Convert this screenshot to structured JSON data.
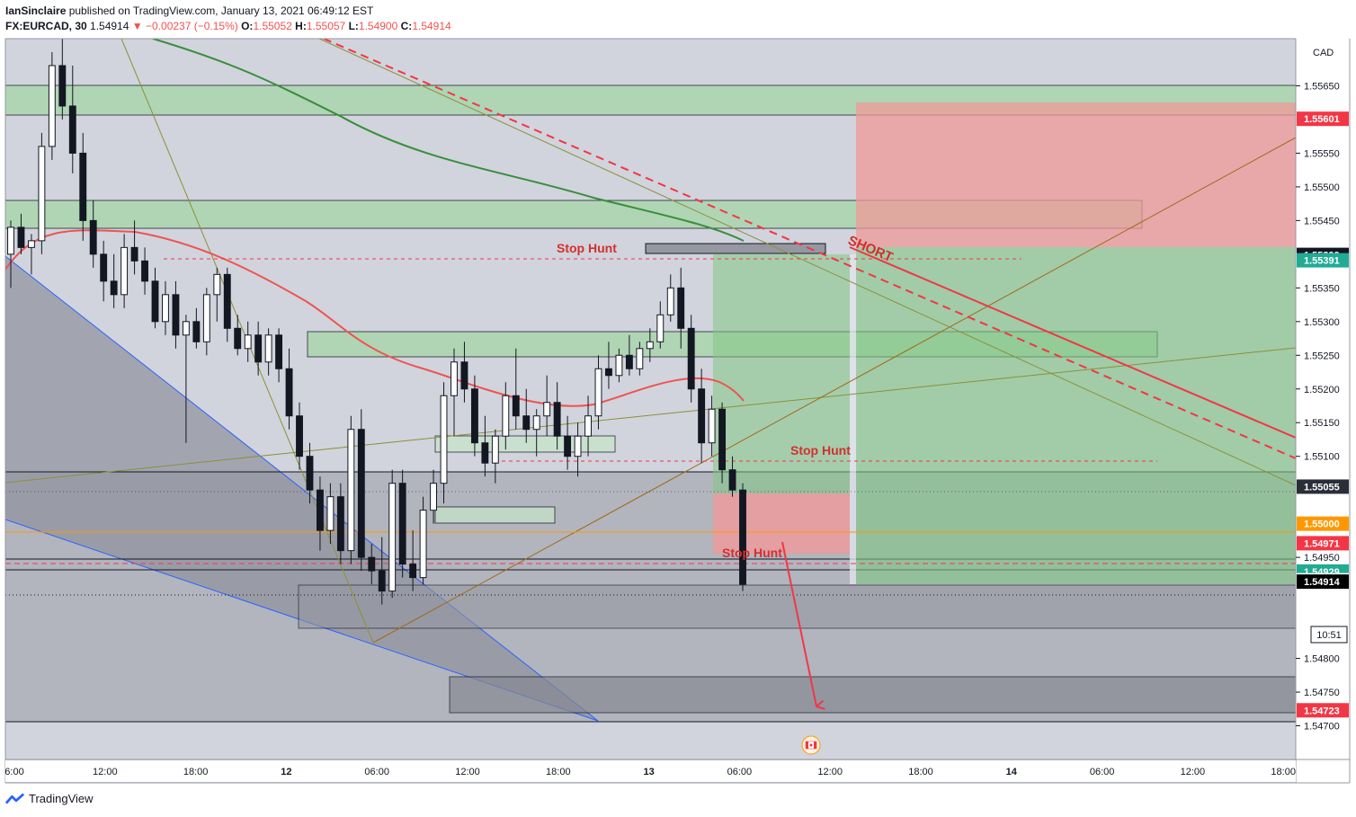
{
  "header": {
    "publisher": "IanSinclaire",
    "published_text": " published on TradingView.com, January 13, 2021 06:49:12 EST",
    "symbol": "FX:EURCAD, 30",
    "last": "1.54914",
    "change": "−0.00237 (−0.15%)",
    "o_label": "O:",
    "o": "1.55052",
    "h_label": "H:",
    "h": "1.55057",
    "l_label": "L:",
    "l": "1.54900",
    "c_label": "C:",
    "c": "1.54914"
  },
  "footer": {
    "brand": "TradingView"
  },
  "chart_data": {
    "type": "candlestick",
    "currency": "CAD",
    "y_ticks": [
      "1.55650",
      "1.55550",
      "1.55500",
      "1.55450",
      "1.55350",
      "1.55300",
      "1.55250",
      "1.55200",
      "1.55150",
      "1.55100",
      "1.54950",
      "1.54800",
      "1.54750",
      "1.54700"
    ],
    "y_ticks_values": [
      1.5565,
      1.5555,
      1.555,
      1.5545,
      1.5535,
      1.553,
      1.5525,
      1.552,
      1.5515,
      1.551,
      1.5495,
      1.548,
      1.5475,
      1.547
    ],
    "ylim": [
      1.5465,
      1.5572
    ],
    "x_ticks": [
      "6:00",
      "12:00",
      "18:00",
      "12",
      "06:00",
      "12:00",
      "18:00",
      "13",
      "06:00",
      "12:00",
      "18:00",
      "14",
      "06:00",
      "12:00",
      "18:00"
    ],
    "price_labels": [
      {
        "text": "1.55601",
        "value": 1.55601,
        "color": "#f23645"
      },
      {
        "text": "1.55399",
        "value": 1.55399,
        "color": "#131722"
      },
      {
        "text": "1.55391",
        "value": 1.55391,
        "color": "#22ab94"
      },
      {
        "text": "1.55055",
        "value": 1.55055,
        "color": "#2a2e39"
      },
      {
        "text": "1.55000",
        "value": 1.55,
        "color": "#ff9800"
      },
      {
        "text": "1.54971",
        "value": 1.54971,
        "color": "#f23645"
      },
      {
        "text": "1.54929",
        "value": 1.54929,
        "color": "#22ab94"
      },
      {
        "text": "1.54916",
        "value": 1.54916,
        "color": "#ffffff"
      },
      {
        "text": "1.54914",
        "value": 1.54914,
        "color": "#000000"
      },
      {
        "text": "1.54723",
        "value": 1.54723,
        "color": "#f23645"
      }
    ],
    "countdown": "10:51",
    "annotations": [
      "Stop Hunt",
      "Stop Hunt",
      "Stop Hunt",
      "SHORT"
    ],
    "candles": [
      [
        1.554,
        1.5545,
        1.5535,
        1.5544
      ],
      [
        1.5544,
        1.5546,
        1.554,
        1.5541
      ],
      [
        1.5541,
        1.5543,
        1.5537,
        1.5542
      ],
      [
        1.5542,
        1.5558,
        1.554,
        1.5556
      ],
      [
        1.5556,
        1.557,
        1.5554,
        1.5568
      ],
      [
        1.5568,
        1.5575,
        1.556,
        1.5562
      ],
      [
        1.5562,
        1.5568,
        1.5552,
        1.5555
      ],
      [
        1.5555,
        1.5558,
        1.5542,
        1.5545
      ],
      [
        1.5545,
        1.5548,
        1.5538,
        1.554
      ],
      [
        1.554,
        1.5542,
        1.5533,
        1.5536
      ],
      [
        1.5536,
        1.554,
        1.5532,
        1.5534
      ],
      [
        1.5534,
        1.5543,
        1.5532,
        1.5541
      ],
      [
        1.5541,
        1.5545,
        1.5537,
        1.5539
      ],
      [
        1.5539,
        1.5541,
        1.5534,
        1.5536
      ],
      [
        1.5536,
        1.5538,
        1.5529,
        1.553
      ],
      [
        1.553,
        1.5536,
        1.5528,
        1.5534
      ],
      [
        1.5534,
        1.5536,
        1.5526,
        1.5528
      ],
      [
        1.5528,
        1.5531,
        1.5512,
        1.553
      ],
      [
        1.553,
        1.5532,
        1.5526,
        1.5527
      ],
      [
        1.5527,
        1.5535,
        1.5525,
        1.5534
      ],
      [
        1.5534,
        1.5538,
        1.553,
        1.5537
      ],
      [
        1.5537,
        1.5538,
        1.5527,
        1.5529
      ],
      [
        1.5529,
        1.5531,
        1.5525,
        1.5526
      ],
      [
        1.5526,
        1.553,
        1.5524,
        1.5528
      ],
      [
        1.5528,
        1.553,
        1.5522,
        1.5524
      ],
      [
        1.5524,
        1.5529,
        1.5522,
        1.5528
      ],
      [
        1.5528,
        1.5529,
        1.5521,
        1.5523
      ],
      [
        1.5523,
        1.5526,
        1.5514,
        1.5516
      ],
      [
        1.5516,
        1.5518,
        1.5508,
        1.551
      ],
      [
        1.551,
        1.5512,
        1.5503,
        1.5505
      ],
      [
        1.5505,
        1.5507,
        1.5496,
        1.5499
      ],
      [
        1.5499,
        1.5506,
        1.5497,
        1.5504
      ],
      [
        1.5504,
        1.5506,
        1.5494,
        1.5496
      ],
      [
        1.5496,
        1.5516,
        1.5494,
        1.5514
      ],
      [
        1.5514,
        1.5517,
        1.5493,
        1.5495
      ],
      [
        1.5495,
        1.5497,
        1.5491,
        1.5493
      ],
      [
        1.5493,
        1.5498,
        1.5488,
        1.549
      ],
      [
        1.549,
        1.5508,
        1.5489,
        1.5506
      ],
      [
        1.5506,
        1.5508,
        1.5492,
        1.5494
      ],
      [
        1.5494,
        1.5499,
        1.549,
        1.5492
      ],
      [
        1.5492,
        1.5504,
        1.5491,
        1.5502
      ],
      [
        1.5502,
        1.5508,
        1.55,
        1.5506
      ],
      [
        1.5506,
        1.5521,
        1.5503,
        1.5519
      ],
      [
        1.5519,
        1.5526,
        1.5513,
        1.5524
      ],
      [
        1.5524,
        1.5527,
        1.5518,
        1.552
      ],
      [
        1.552,
        1.5522,
        1.551,
        1.5512
      ],
      [
        1.5512,
        1.5516,
        1.5507,
        1.5509
      ],
      [
        1.5509,
        1.5514,
        1.5506,
        1.5513
      ],
      [
        1.5513,
        1.5521,
        1.5511,
        1.5519
      ],
      [
        1.5519,
        1.5526,
        1.5514,
        1.5516
      ],
      [
        1.5516,
        1.552,
        1.5512,
        1.5514
      ],
      [
        1.5514,
        1.5517,
        1.551,
        1.5516
      ],
      [
        1.5516,
        1.5522,
        1.5513,
        1.5518
      ],
      [
        1.5518,
        1.5521,
        1.5511,
        1.5513
      ],
      [
        1.5513,
        1.5516,
        1.5508,
        1.551
      ],
      [
        1.551,
        1.5515,
        1.5507,
        1.5513
      ],
      [
        1.5513,
        1.5519,
        1.551,
        1.5516
      ],
      [
        1.5516,
        1.5525,
        1.5514,
        1.5523
      ],
      [
        1.5523,
        1.5527,
        1.552,
        1.5522
      ],
      [
        1.5522,
        1.5526,
        1.5521,
        1.5525
      ],
      [
        1.5525,
        1.5528,
        1.5522,
        1.5523
      ],
      [
        1.5523,
        1.5527,
        1.5522,
        1.5526
      ],
      [
        1.5526,
        1.5529,
        1.5524,
        1.5527
      ],
      [
        1.5527,
        1.5533,
        1.5526,
        1.5531
      ],
      [
        1.5531,
        1.5537,
        1.553,
        1.5535
      ],
      [
        1.5535,
        1.5538,
        1.5526,
        1.5529
      ],
      [
        1.5529,
        1.5531,
        1.5518,
        1.552
      ],
      [
        1.552,
        1.5523,
        1.5509,
        1.5512
      ],
      [
        1.5512,
        1.5519,
        1.551,
        1.5517
      ],
      [
        1.5517,
        1.5518,
        1.5506,
        1.5508
      ],
      [
        1.5508,
        1.551,
        1.5504,
        1.5505
      ],
      [
        1.5505,
        1.5506,
        1.549,
        1.5491
      ]
    ]
  }
}
